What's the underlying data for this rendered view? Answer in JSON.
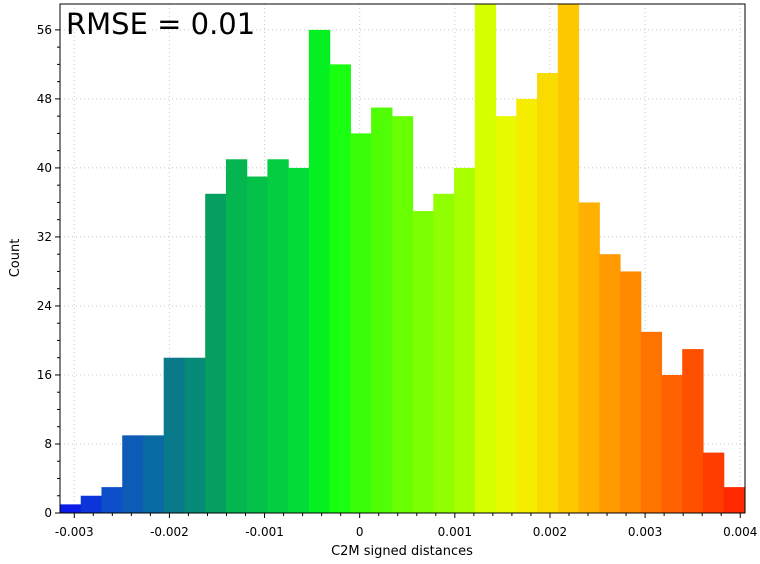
{
  "chart_data": {
    "type": "bar",
    "annotation": "RMSE = 0.01",
    "xlabel": "C2M signed distances",
    "ylabel": "Count",
    "xlim": [
      -0.00315,
      0.00405
    ],
    "ylim": [
      0,
      59
    ],
    "x_ticks": [
      -0.003,
      -0.002,
      -0.001,
      0,
      0.001,
      0.002,
      0.003,
      0.004
    ],
    "x_tick_labels": [
      "-0.003",
      "-0.002",
      "-0.001",
      "0",
      "0.001",
      "0.002",
      "0.003",
      "0.004"
    ],
    "y_ticks": [
      0,
      8,
      16,
      24,
      32,
      40,
      48,
      56
    ],
    "y_tick_labels": [
      "0",
      "8",
      "16",
      "24",
      "32",
      "40",
      "48",
      "56"
    ],
    "grid": true,
    "bin_start": -0.00315,
    "bin_width": 0.000218,
    "values": [
      1,
      2,
      3,
      9,
      9,
      18,
      18,
      37,
      41,
      39,
      41,
      40,
      56,
      52,
      44,
      47,
      46,
      35,
      37,
      40,
      59,
      46,
      48,
      51,
      59,
      36,
      30,
      28,
      21,
      16,
      19,
      7,
      3
    ],
    "colors": [
      "#0a1be8",
      "#0b35d8",
      "#0c4fc8",
      "#0d5bb6",
      "#0a6aa4",
      "#087a8a",
      "#078a78",
      "#05a060",
      "#04b550",
      "#03c048",
      "#03cd40",
      "#03dc38",
      "#05f020",
      "#18ff10",
      "#38ff08",
      "#50ff05",
      "#68ff03",
      "#7cff02",
      "#90ff01",
      "#a8ff00",
      "#d6ff00",
      "#e8fa00",
      "#f5ec00",
      "#fadb00",
      "#fec800",
      "#ffb000",
      "#ff9a00",
      "#ff8a00",
      "#ff7400",
      "#ff6200",
      "#ff5000",
      "#ff3c00",
      "#ff2800"
    ]
  }
}
